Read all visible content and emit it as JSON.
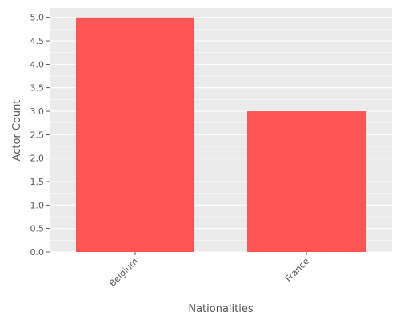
{
  "chart_data": {
    "type": "bar",
    "categories": [
      "Belgium",
      "France"
    ],
    "values": [
      5,
      3
    ],
    "title": "",
    "xlabel": "Nationalities",
    "ylabel": "Actor Count",
    "ylim": [
      0,
      5.2
    ],
    "yticks": [
      "0.0",
      "0.5",
      "1.0",
      "1.5",
      "2.0",
      "2.5",
      "3.0",
      "3.5",
      "4.0",
      "4.5",
      "5.0"
    ],
    "grid": true,
    "bar_color": "#ff5555",
    "panel_color": "#ebebeb",
    "grid_color": "#ffffff"
  }
}
